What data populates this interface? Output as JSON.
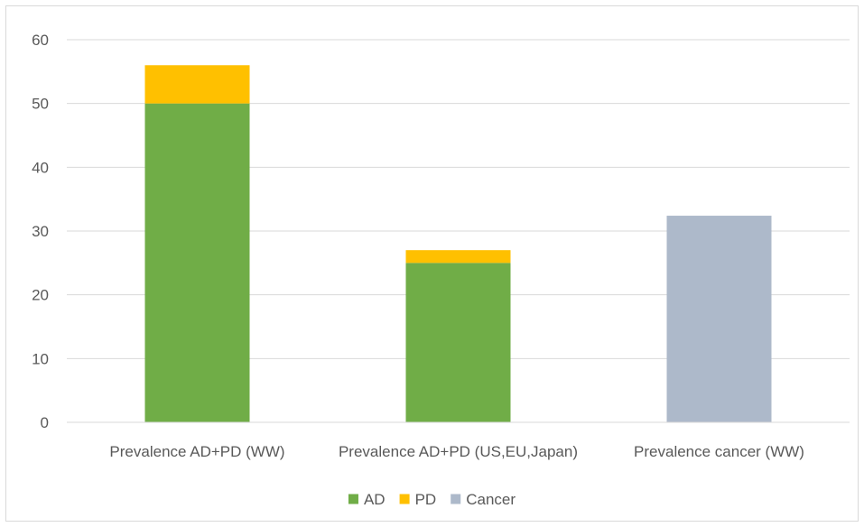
{
  "chart_data": {
    "type": "bar",
    "stacked": true,
    "title": "",
    "xlabel": "",
    "ylabel": "",
    "ylim": [
      0,
      60
    ],
    "yticks": [
      0,
      10,
      20,
      30,
      40,
      50,
      60
    ],
    "grid": true,
    "legend_position": "bottom",
    "categories": [
      "Prevalence AD+PD (WW)",
      "Prevalence AD+PD (US,EU,Japan)",
      "Prevalence cancer (WW)"
    ],
    "series": [
      {
        "name": "AD",
        "color": "#70ad47",
        "values": [
          50,
          25,
          0
        ]
      },
      {
        "name": "PD",
        "color": "#ffc000",
        "values": [
          6,
          2,
          0
        ]
      },
      {
        "name": "Cancer",
        "color": "#adb9ca",
        "values": [
          0,
          0,
          32.4
        ]
      }
    ]
  }
}
